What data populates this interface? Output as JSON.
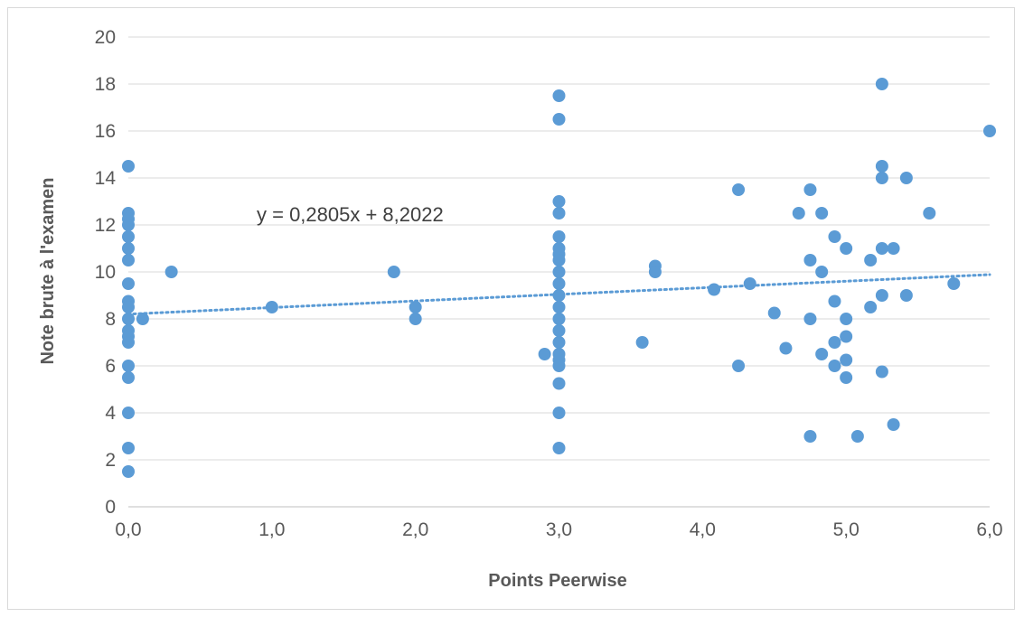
{
  "chart_data": {
    "type": "scatter",
    "title": "",
    "xlabel": "Points Peerwise",
    "ylabel": "Note brute à l'examen",
    "xlim": [
      0,
      6
    ],
    "ylim": [
      0,
      20
    ],
    "x_ticks": [
      "0,0",
      "1,0",
      "2,0",
      "3,0",
      "4,0",
      "5,0",
      "6,0"
    ],
    "y_ticks": [
      "0",
      "2",
      "4",
      "6",
      "8",
      "10",
      "12",
      "14",
      "16",
      "18",
      "20"
    ],
    "grid": "horizontal",
    "marker_color": "#5b9bd5",
    "trendline": {
      "type": "linear",
      "slope": 0.2805,
      "intercept": 8.2022,
      "equation": "y = 0,2805x + 8,2022",
      "color": "#5b9bd5"
    },
    "points": [
      [
        0,
        14.5
      ],
      [
        0,
        12.5
      ],
      [
        0,
        12.25
      ],
      [
        0,
        12
      ],
      [
        0,
        11.5
      ],
      [
        0,
        11
      ],
      [
        0,
        10.5
      ],
      [
        0,
        9.5
      ],
      [
        0,
        8.75
      ],
      [
        0,
        8.5
      ],
      [
        0,
        8
      ],
      [
        0,
        7.5
      ],
      [
        0,
        7.25
      ],
      [
        0,
        7
      ],
      [
        0,
        6
      ],
      [
        0,
        5.5
      ],
      [
        0,
        4
      ],
      [
        0,
        2.5
      ],
      [
        0,
        1.5
      ],
      [
        0.1,
        8
      ],
      [
        0.3,
        10
      ],
      [
        1,
        8.5
      ],
      [
        1.85,
        10
      ],
      [
        2,
        8.5
      ],
      [
        2,
        8
      ],
      [
        2.9,
        6.5
      ],
      [
        3,
        17.5
      ],
      [
        3,
        16.5
      ],
      [
        3,
        13
      ],
      [
        3,
        12.5
      ],
      [
        3,
        11.5
      ],
      [
        3,
        11
      ],
      [
        3,
        10.75
      ],
      [
        3,
        10.5
      ],
      [
        3,
        10
      ],
      [
        3,
        9.5
      ],
      [
        3,
        9
      ],
      [
        3,
        8.5
      ],
      [
        3,
        8
      ],
      [
        3,
        7.5
      ],
      [
        3,
        7
      ],
      [
        3,
        6.5
      ],
      [
        3,
        6.25
      ],
      [
        3,
        6
      ],
      [
        3,
        5.25
      ],
      [
        3,
        4
      ],
      [
        3,
        2.5
      ],
      [
        3.58,
        7
      ],
      [
        3.67,
        10.25
      ],
      [
        3.67,
        10
      ],
      [
        4.08,
        9.25
      ],
      [
        4.25,
        13.5
      ],
      [
        4.25,
        6
      ],
      [
        4.33,
        9.5
      ],
      [
        4.5,
        8.25
      ],
      [
        4.58,
        6.75
      ],
      [
        4.67,
        12.5
      ],
      [
        4.75,
        13.5
      ],
      [
        4.75,
        10.5
      ],
      [
        4.75,
        8
      ],
      [
        4.75,
        3
      ],
      [
        4.83,
        12.5
      ],
      [
        4.83,
        10
      ],
      [
        4.83,
        6.5
      ],
      [
        4.92,
        11.5
      ],
      [
        4.92,
        8.75
      ],
      [
        4.92,
        7
      ],
      [
        4.92,
        6
      ],
      [
        5,
        11
      ],
      [
        5,
        8
      ],
      [
        5,
        7.25
      ],
      [
        5,
        6.25
      ],
      [
        5,
        5.5
      ],
      [
        5.08,
        3
      ],
      [
        5.17,
        10.5
      ],
      [
        5.17,
        8.5
      ],
      [
        5.25,
        18
      ],
      [
        5.25,
        14.5
      ],
      [
        5.25,
        14
      ],
      [
        5.25,
        11
      ],
      [
        5.25,
        9
      ],
      [
        5.25,
        5.75
      ],
      [
        5.33,
        11
      ],
      [
        5.33,
        3.5
      ],
      [
        5.42,
        14
      ],
      [
        5.42,
        9
      ],
      [
        5.58,
        12.5
      ],
      [
        5.75,
        9.5
      ],
      [
        6,
        16
      ]
    ]
  }
}
